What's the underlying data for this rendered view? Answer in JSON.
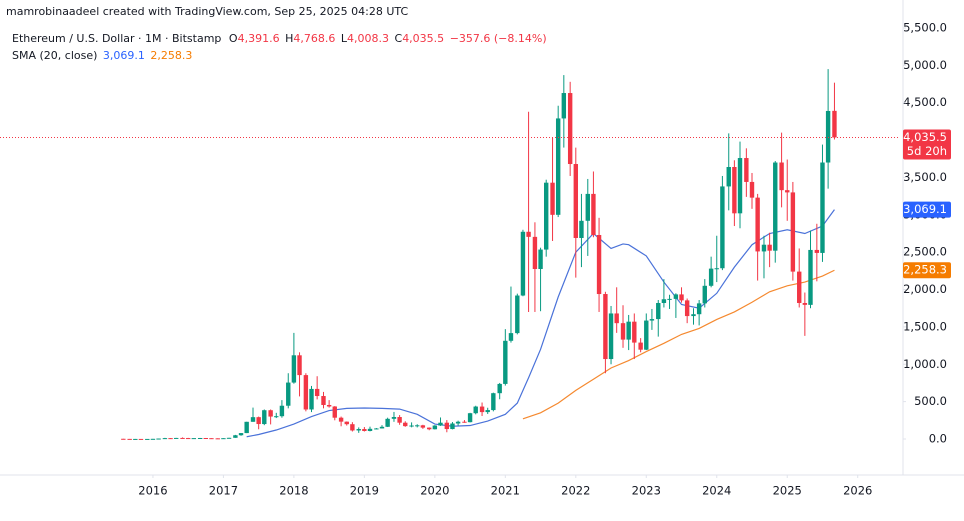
{
  "header": "mamrobinaadeel created with TradingView.com, Sep 25, 2025 04:28 UTC",
  "legend": {
    "symbol": "Ethereum / U.S. Dollar · 1M · Bitstamp",
    "o_label": "O",
    "open": "4,391.6",
    "h_label": "H",
    "high": "4,768.6",
    "l_label": "L",
    "low": "4,008.3",
    "c_label": "C",
    "close": "4,035.5",
    "change": "−357.6 (−8.14%)",
    "sma_label": "SMA (20, close)",
    "sma1": "3,069.1",
    "sma2": "2,258.3",
    "countdown": "5d 20h"
  },
  "chart_data": {
    "type": "candlestick",
    "up_color": "#089981",
    "down_color": "#f23645",
    "xlim": [
      2013.83,
      2026.6
    ],
    "xticks": [
      2016,
      2017,
      2018,
      2019,
      2020,
      2021,
      2022,
      2023,
      2024,
      2025,
      2026
    ],
    "ylim": [
      -482,
      5875
    ],
    "yticks": [
      {
        "value": 0,
        "label": "0.0"
      },
      {
        "value": 500,
        "label": "500.0"
      },
      {
        "value": 1000,
        "label": "1,000.0"
      },
      {
        "value": 1500,
        "label": "1,500.0"
      },
      {
        "value": 2000,
        "label": "2,000.0"
      },
      {
        "value": 2500,
        "label": "2,500.0"
      },
      {
        "value": 3000,
        "label": "3,000.0"
      },
      {
        "value": 3500,
        "label": "3,500.0"
      },
      {
        "value": 4000,
        "label": "4,000.0"
      },
      {
        "value": 4500,
        "label": "4,500.0"
      },
      {
        "value": 5000,
        "label": "5,000.0"
      },
      {
        "value": 5500,
        "label": "5,500.0"
      }
    ],
    "x": [
      2015.58,
      2015.67,
      2015.75,
      2015.83,
      2015.92,
      2016.0,
      2016.08,
      2016.17,
      2016.25,
      2016.33,
      2016.42,
      2016.5,
      2016.58,
      2016.67,
      2016.75,
      2016.83,
      2016.92,
      2017.0,
      2017.08,
      2017.17,
      2017.25,
      2017.33,
      2017.42,
      2017.5,
      2017.58,
      2017.67,
      2017.75,
      2017.83,
      2017.92,
      2018.0,
      2018.08,
      2018.17,
      2018.25,
      2018.33,
      2018.42,
      2018.5,
      2018.58,
      2018.67,
      2018.75,
      2018.83,
      2018.92,
      2019.0,
      2019.08,
      2019.17,
      2019.25,
      2019.33,
      2019.42,
      2019.5,
      2019.58,
      2019.67,
      2019.75,
      2019.83,
      2019.92,
      2020.0,
      2020.08,
      2020.17,
      2020.25,
      2020.33,
      2020.42,
      2020.5,
      2020.58,
      2020.67,
      2020.75,
      2020.83,
      2020.92,
      2021.0,
      2021.08,
      2021.17,
      2021.25,
      2021.33,
      2021.42,
      2021.5,
      2021.58,
      2021.67,
      2021.75,
      2021.83,
      2021.92,
      2022.0,
      2022.08,
      2022.17,
      2022.25,
      2022.33,
      2022.42,
      2022.5,
      2022.58,
      2022.67,
      2022.75,
      2022.83,
      2022.92,
      2023.0,
      2023.08,
      2023.17,
      2023.25,
      2023.33,
      2023.42,
      2023.5,
      2023.58,
      2023.67,
      2023.75,
      2023.83,
      2023.92,
      2024.0,
      2024.08,
      2024.17,
      2024.25,
      2024.33,
      2024.42,
      2024.5,
      2024.58,
      2024.67,
      2024.75,
      2024.83,
      2024.92,
      2025.0,
      2025.08,
      2025.17,
      2025.25,
      2025.33,
      2025.42,
      2025.5,
      2025.58,
      2025.67
    ],
    "open": [
      2.8,
      1.35,
      0.73,
      0.9,
      0.87,
      0.93,
      2.2,
      6.1,
      11.4,
      8.8,
      14,
      12.4,
      11.6,
      11.6,
      13.2,
      10.8,
      8.6,
      8,
      10.7,
      15.7,
      50,
      79,
      230,
      292,
      200,
      385,
      300,
      305,
      445,
      755,
      1120,
      855,
      395,
      670,
      575,
      455,
      435,
      285,
      232,
      198,
      114,
      133,
      107,
      136,
      141,
      163,
      270,
      294,
      218,
      172,
      180,
      183,
      152,
      130,
      180,
      218,
      133,
      207,
      231,
      225,
      345,
      434,
      360,
      387,
      613,
      737,
      1314,
      1417,
      1920,
      2773,
      2705,
      2275,
      2535,
      3430,
      3000,
      4290,
      4630,
      3680,
      2690,
      2920,
      3280,
      2730,
      1940,
      1070,
      1680,
      1550,
      1330,
      1570,
      1290,
      1195,
      1585,
      1605,
      1820,
      1870,
      1875,
      1935,
      1855,
      1645,
      1670,
      1815,
      2050,
      2280,
      2285,
      3380,
      3640,
      3020,
      3760,
      3440,
      3230,
      2510,
      2600,
      2520,
      3700,
      3330,
      3300,
      2240,
      1820,
      1795,
      2530,
      2490,
      3700,
      4391.6
    ],
    "high": [
      3,
      1.4,
      1.3,
      1.1,
      0.95,
      2.5,
      6.5,
      15,
      12,
      15,
      21,
      15,
      12,
      14,
      13.5,
      11.5,
      9.5,
      11.5,
      16,
      55,
      80,
      230,
      420,
      300,
      395,
      395,
      350,
      520,
      880,
      1420,
      1160,
      880,
      710,
      840,
      630,
      520,
      440,
      300,
      235,
      225,
      155,
      160,
      165,
      147,
      185,
      285,
      362,
      320,
      237,
      222,
      197,
      190,
      155,
      185,
      288,
      253,
      227,
      245,
      253,
      350,
      445,
      488,
      418,
      620,
      750,
      1470,
      2040,
      1945,
      2800,
      4380,
      2900,
      2560,
      3470,
      4030,
      4460,
      4870,
      4780,
      3900,
      3280,
      3480,
      3580,
      2960,
      1970,
      1780,
      2030,
      1790,
      1660,
      1680,
      1350,
      1680,
      1740,
      1860,
      2140,
      1930,
      1950,
      2030,
      1880,
      1750,
      1860,
      2140,
      2440,
      2720,
      3520,
      4090,
      3730,
      3980,
      3890,
      3560,
      3280,
      2720,
      2760,
      3720,
      4100,
      3740,
      3440,
      2550,
      1960,
      2790,
      2880,
      3940,
      4950,
      4768.6
    ],
    "low": [
      0.5,
      0.6,
      0.4,
      0.8,
      0.8,
      0.9,
      2.1,
      6,
      7,
      8.5,
      10,
      10.5,
      10,
      11.3,
      10.3,
      8.4,
      6.3,
      8,
      10.3,
      15.7,
      43,
      79,
      230,
      130,
      185,
      195,
      280,
      285,
      410,
      740,
      570,
      370,
      360,
      530,
      410,
      420,
      250,
      170,
      180,
      100,
      82,
      100,
      102,
      128,
      140,
      160,
      230,
      190,
      163,
      156,
      155,
      136,
      117,
      127,
      175,
      90,
      129,
      179,
      217,
      222,
      330,
      308,
      335,
      370,
      532,
      715,
      1290,
      1400,
      1910,
      1700,
      1700,
      1710,
      2440,
      2650,
      2970,
      3900,
      3520,
      2160,
      2300,
      2450,
      2700,
      1700,
      880,
      1000,
      1420,
      1220,
      1190,
      1070,
      1160,
      1190,
      1460,
      1370,
      1760,
      1740,
      1620,
      1825,
      1550,
      1530,
      1520,
      1760,
      2030,
      2100,
      2260,
      3060,
      2850,
      2820,
      3240,
      3080,
      2120,
      2150,
      2300,
      2360,
      3100,
      2920,
      2120,
      1760,
      1380,
      1750,
      2110,
      2370,
      3350,
      4008.3
    ],
    "close": [
      1.35,
      0.73,
      0.9,
      0.87,
      0.93,
      2.2,
      6.1,
      11.4,
      8.8,
      14,
      12.4,
      11.6,
      11.6,
      13.2,
      10.8,
      8.6,
      8,
      10.7,
      15.7,
      50,
      79,
      230,
      292,
      200,
      385,
      300,
      305,
      445,
      755,
      1120,
      855,
      395,
      670,
      575,
      455,
      435,
      285,
      232,
      198,
      114,
      133,
      107,
      136,
      141,
      163,
      270,
      294,
      218,
      172,
      180,
      183,
      152,
      130,
      180,
      218,
      133,
      207,
      231,
      225,
      345,
      434,
      360,
      387,
      613,
      737,
      1314,
      1417,
      1920,
      2773,
      2705,
      2275,
      2535,
      3430,
      3000,
      4290,
      4630,
      3680,
      2690,
      2920,
      3280,
      2730,
      1940,
      1070,
      1680,
      1550,
      1330,
      1570,
      1290,
      1195,
      1585,
      1605,
      1820,
      1870,
      1875,
      1935,
      1855,
      1645,
      1670,
      1815,
      2050,
      2280,
      2285,
      3380,
      3640,
      3020,
      3760,
      3440,
      3230,
      2510,
      2600,
      2520,
      3700,
      3330,
      3300,
      2240,
      1820,
      1795,
      2530,
      2490,
      3700,
      4390,
      4035.5
    ],
    "lines": [
      {
        "color": "#4a72d9",
        "x": [
          2017.33,
          2017.5,
          2017.75,
          2018.0,
          2018.25,
          2018.5,
          2018.75,
          2019.0,
          2019.25,
          2019.5,
          2019.75,
          2020.0,
          2020.25,
          2020.5,
          2020.75,
          2021.0,
          2021.17,
          2021.33,
          2021.5,
          2021.75,
          2022.0,
          2022.25,
          2022.5,
          2022.67,
          2022.75,
          2023.0,
          2023.25,
          2023.5,
          2023.75,
          2024.0,
          2024.25,
          2024.5,
          2024.75,
          2025.0,
          2025.25,
          2025.5,
          2025.67
        ],
        "values": [
          30,
          60,
          120,
          200,
          300,
          380,
          410,
          415,
          410,
          400,
          330,
          200,
          170,
          180,
          240,
          330,
          480,
          820,
          1200,
          1900,
          2500,
          2750,
          2550,
          2610,
          2600,
          2450,
          2100,
          1800,
          1750,
          1950,
          2300,
          2600,
          2750,
          2800,
          2750,
          2850,
          3069.1
        ]
      },
      {
        "color": "#f5892f",
        "x": [
          2021.25,
          2021.5,
          2021.75,
          2022.0,
          2022.25,
          2022.5,
          2022.75,
          2023.0,
          2023.25,
          2023.5,
          2023.75,
          2024.0,
          2024.25,
          2024.5,
          2024.75,
          2025.0,
          2025.25,
          2025.5,
          2025.67
        ],
        "values": [
          270,
          350,
          480,
          650,
          800,
          950,
          1050,
          1170,
          1280,
          1400,
          1480,
          1600,
          1700,
          1830,
          1970,
          2050,
          2100,
          2180,
          2258.3
        ]
      }
    ]
  }
}
